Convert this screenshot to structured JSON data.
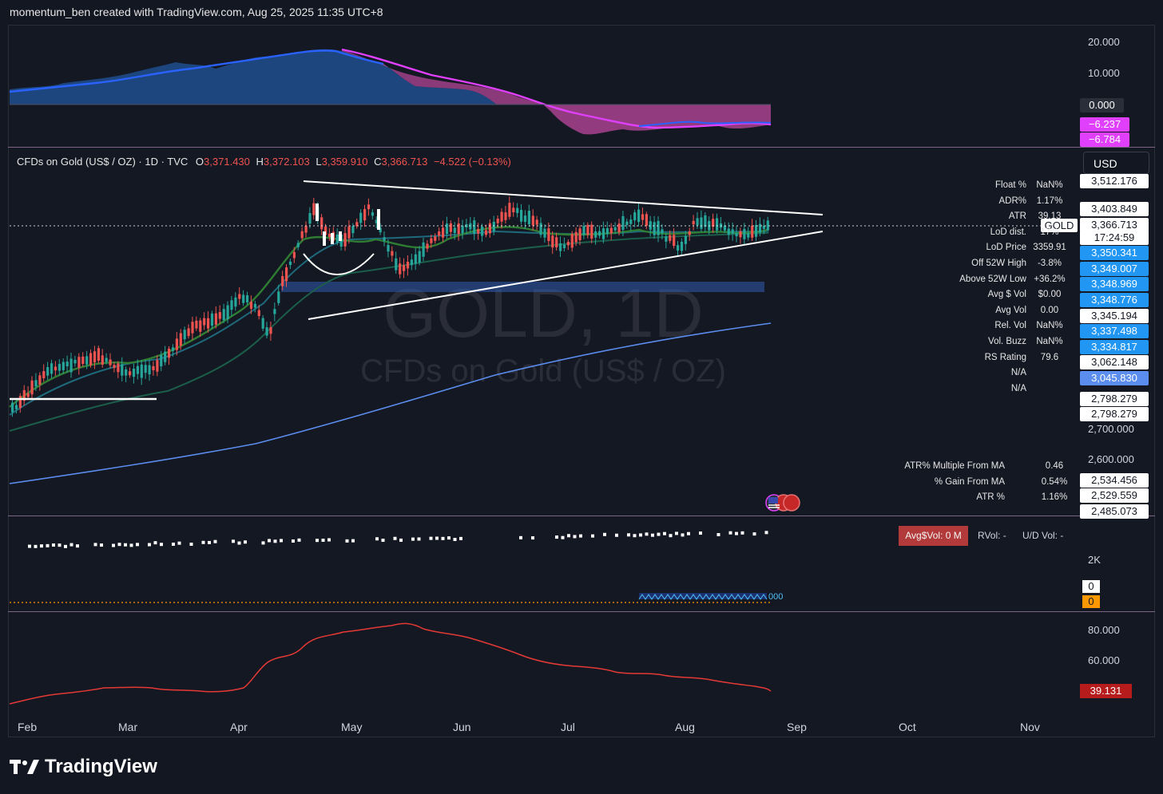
{
  "header": {
    "credit": "momentum_ben created with TradingView.com, Aug 25, 2025 11:35 UTC+8"
  },
  "legend": {
    "symbol": "CFDs on Gold (US$ / OZ) · 1D · TVC",
    "o_label": "O",
    "o": "3,371.430",
    "h_label": "H",
    "h": "3,372.103",
    "l_label": "L",
    "l": "3,359.910",
    "c_label": "C",
    "c": "3,366.713",
    "change": "−4.522 (−0.13%)"
  },
  "currency_button": "USD",
  "watermark": {
    "ticker": "GOLD, 1D",
    "name": "CFDs on Gold (US$ / OZ)"
  },
  "top_pane": {
    "ticks": [
      "20.000",
      "10.000"
    ],
    "tags": [
      {
        "text": "0.000",
        "bg": "#2a2e39",
        "color": "#ffffff"
      },
      {
        "text": "−6.237",
        "bg": "#e040fb",
        "color": "#ffffff"
      },
      {
        "text": "−6.784",
        "bg": "#e040fb",
        "color": "#ffffff"
      }
    ]
  },
  "price_axis": {
    "tags": [
      {
        "text": "3,512.176",
        "bg": "#ffffff",
        "color": "#131722"
      },
      {
        "text": "3,403.849",
        "bg": "#ffffff",
        "color": "#131722"
      },
      {
        "text": "3,366.713",
        "bg": "#ffffff",
        "color": "#131722"
      },
      {
        "text": "17:24:59",
        "bg": "#ffffff",
        "color": "#131722"
      },
      {
        "text": "3,350.341",
        "bg": "#2196f3",
        "color": "#ffffff"
      },
      {
        "text": "3,349.007",
        "bg": "#2196f3",
        "color": "#ffffff"
      },
      {
        "text": "3,348.969",
        "bg": "#2196f3",
        "color": "#ffffff"
      },
      {
        "text": "3,348.776",
        "bg": "#2196f3",
        "color": "#ffffff"
      },
      {
        "text": "3,345.194",
        "bg": "#ffffff",
        "color": "#131722"
      },
      {
        "text": "3,337.498",
        "bg": "#2196f3",
        "color": "#ffffff"
      },
      {
        "text": "3,334.817",
        "bg": "#2196f3",
        "color": "#ffffff"
      },
      {
        "text": "3,062.148",
        "bg": "#ffffff",
        "color": "#131722"
      },
      {
        "text": "3,045.830",
        "bg": "#5b8def",
        "color": "#ffffff"
      },
      {
        "text": "2,798.279",
        "bg": "#ffffff",
        "color": "#131722"
      },
      {
        "text": "2,798.279",
        "bg": "#ffffff",
        "color": "#131722"
      }
    ],
    "ticks": [
      "2,700.000",
      "2,600.000"
    ],
    "lower_tags": [
      "2,534.456",
      "2,529.559",
      "2,485.073"
    ],
    "gold_label": "GOLD"
  },
  "stats": [
    {
      "k": "Float %",
      "v": "NaN%"
    },
    {
      "k": "ADR%",
      "v": "1.17%"
    },
    {
      "k": "ATR",
      "v": "39.13"
    },
    {
      "k": "LoD dist.",
      "v": "17%"
    },
    {
      "k": "LoD Price",
      "v": "3359.91"
    },
    {
      "k": "Off 52W High",
      "v": "-3.8%"
    },
    {
      "k": "Above 52W Low",
      "v": "+36.2%"
    },
    {
      "k": "Avg $ Vol",
      "v": "$0.00"
    },
    {
      "k": "Avg Vol",
      "v": "0.00"
    },
    {
      "k": "Rel. Vol",
      "v": "NaN%"
    },
    {
      "k": "Vol. Buzz",
      "v": "NaN%"
    },
    {
      "k": "RS Rating",
      "v": "79.6"
    },
    {
      "k": "N/A",
      "v": ""
    },
    {
      "k": "N/A",
      "v": ""
    }
  ],
  "ma_stats": [
    {
      "k": "ATR% Multiple From MA",
      "v": "0.46"
    },
    {
      "k": "% Gain From MA",
      "v": "0.54%"
    },
    {
      "k": "ATR %",
      "v": "1.16%"
    }
  ],
  "volume_pane": {
    "avg_dollar_vol": "Avg$Vol: 0 M",
    "rvol": "RVol: -",
    "ud_vol": "U/D Vol: -",
    "tick": "2K",
    "tag_zero_white": "0",
    "tag_zero_orange": "0",
    "hidden_label": "000"
  },
  "rsi_pane": {
    "ticks": [
      "80.000",
      "60.000"
    ],
    "tag": "39.131"
  },
  "months": [
    "Feb",
    "Mar",
    "Apr",
    "May",
    "Jun",
    "Jul",
    "Aug",
    "Sep",
    "Oct",
    "Nov"
  ],
  "footer": {
    "brand": "TradingView"
  },
  "colors": {
    "bg": "#131722",
    "up": "#26a69a",
    "down": "#ef5350",
    "blue_ma": "#5b8def",
    "magenta": "#e040fb",
    "rsi": "#e53935"
  }
}
